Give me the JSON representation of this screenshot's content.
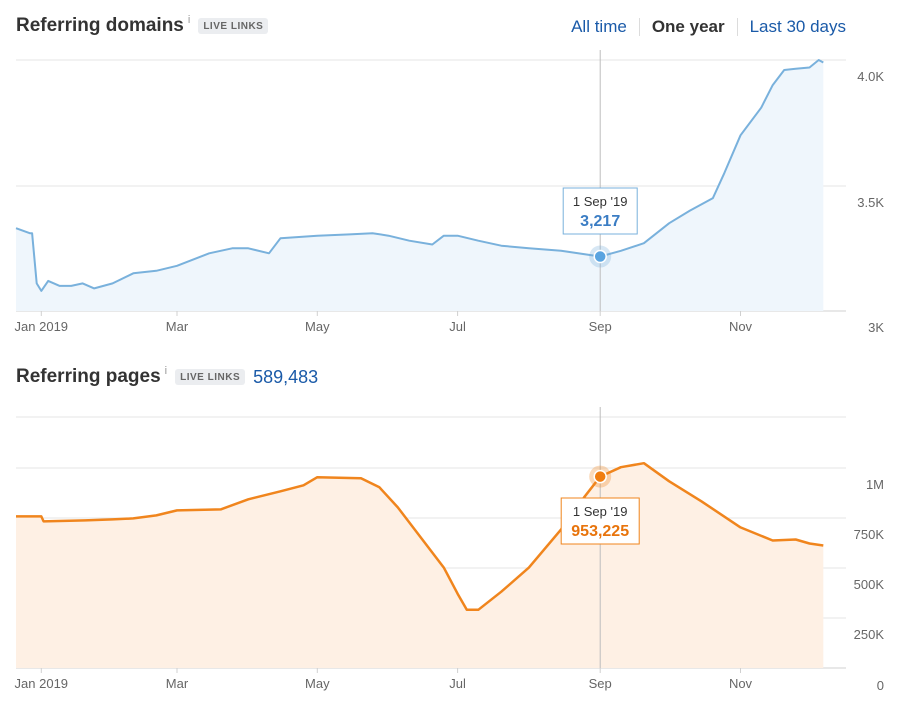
{
  "header_domains": {
    "title": "Referring domains",
    "info": "i",
    "badge": "LIVE LINKS"
  },
  "time_ranges": [
    {
      "label": "All time",
      "active": false
    },
    {
      "label": "One year",
      "active": true
    },
    {
      "label": "Last 30 days",
      "active": false
    }
  ],
  "header_pages": {
    "title": "Referring pages",
    "info": "i",
    "badge": "LIVE LINKS",
    "count": "589,483"
  },
  "colors": {
    "domains_line": "#79b1dc",
    "domains_fill": "#eff6fc",
    "pages_line": "#f0851d",
    "pages_fill": "#fef0e4"
  },
  "chart_data": [
    {
      "type": "area",
      "x_ticks": [
        "Jan 2019",
        "Mar",
        "May",
        "Jul",
        "Sep",
        "Nov"
      ],
      "y_ticks": [
        "4.0K",
        "3.5K",
        "3K"
      ],
      "ylim": [
        3000,
        4000
      ],
      "x": [
        "2018-12-21",
        "2018-12-27",
        "2018-12-28",
        "2018-12-30",
        "2019-01-01",
        "2019-01-04",
        "2019-01-09",
        "2019-01-14",
        "2019-01-19",
        "2019-01-24",
        "2019-02-01",
        "2019-02-10",
        "2019-02-20",
        "2019-03-01",
        "2019-03-15",
        "2019-03-25",
        "2019-04-01",
        "2019-04-10",
        "2019-04-15",
        "2019-05-01",
        "2019-05-15",
        "2019-05-25",
        "2019-06-01",
        "2019-06-10",
        "2019-06-20",
        "2019-06-25",
        "2019-07-01",
        "2019-07-10",
        "2019-07-20",
        "2019-08-01",
        "2019-08-15",
        "2019-09-01",
        "2019-09-10",
        "2019-09-20",
        "2019-10-01",
        "2019-10-10",
        "2019-10-20",
        "2019-10-25",
        "2019-11-01",
        "2019-11-10",
        "2019-11-15",
        "2019-11-20",
        "2019-11-25",
        "2019-12-01",
        "2019-12-05",
        "2019-12-07"
      ],
      "values": [
        3330,
        3310,
        3310,
        3110,
        3080,
        3120,
        3100,
        3100,
        3110,
        3090,
        3110,
        3150,
        3160,
        3180,
        3230,
        3250,
        3250,
        3230,
        3290,
        3300,
        3305,
        3310,
        3300,
        3280,
        3265,
        3300,
        3300,
        3280,
        3260,
        3250,
        3240,
        3217,
        3240,
        3270,
        3350,
        3400,
        3450,
        3550,
        3700,
        3810,
        3900,
        3960,
        3965,
        3970,
        4000,
        3990
      ],
      "tooltip": {
        "date": "1 Sep '19",
        "value": "3,217",
        "x": "2019-09-01",
        "y": 3217
      }
    },
    {
      "type": "area",
      "x_ticks": [
        "Jan 2019",
        "Mar",
        "May",
        "Jul",
        "Sep",
        "Nov"
      ],
      "y_ticks": [
        "1M",
        "750K",
        "500K",
        "250K",
        "0"
      ],
      "ylim": [
        0,
        1250000
      ],
      "x": [
        "2018-12-21",
        "2019-01-01",
        "2019-01-02",
        "2019-01-20",
        "2019-02-01",
        "2019-02-10",
        "2019-02-20",
        "2019-03-01",
        "2019-03-20",
        "2019-04-01",
        "2019-04-15",
        "2019-04-25",
        "2019-05-01",
        "2019-05-20",
        "2019-05-28",
        "2019-06-05",
        "2019-06-15",
        "2019-06-25",
        "2019-07-01",
        "2019-07-05",
        "2019-07-10",
        "2019-07-20",
        "2019-08-01",
        "2019-08-15",
        "2019-08-25",
        "2019-09-01",
        "2019-09-10",
        "2019-09-20",
        "2019-10-01",
        "2019-10-15",
        "2019-11-01",
        "2019-11-15",
        "2019-11-25",
        "2019-12-01",
        "2019-12-07"
      ],
      "values": [
        755000,
        755000,
        730000,
        735000,
        740000,
        745000,
        760000,
        785000,
        790000,
        840000,
        880000,
        910000,
        950000,
        945000,
        900000,
        800000,
        650000,
        500000,
        370000,
        290000,
        290000,
        380000,
        500000,
        690000,
        850000,
        953225,
        1000000,
        1020000,
        930000,
        830000,
        700000,
        635000,
        640000,
        620000,
        610000
      ],
      "tooltip": {
        "date": "1 Sep '19",
        "value": "953,225",
        "x": "2019-09-01",
        "y": 953225
      }
    }
  ]
}
